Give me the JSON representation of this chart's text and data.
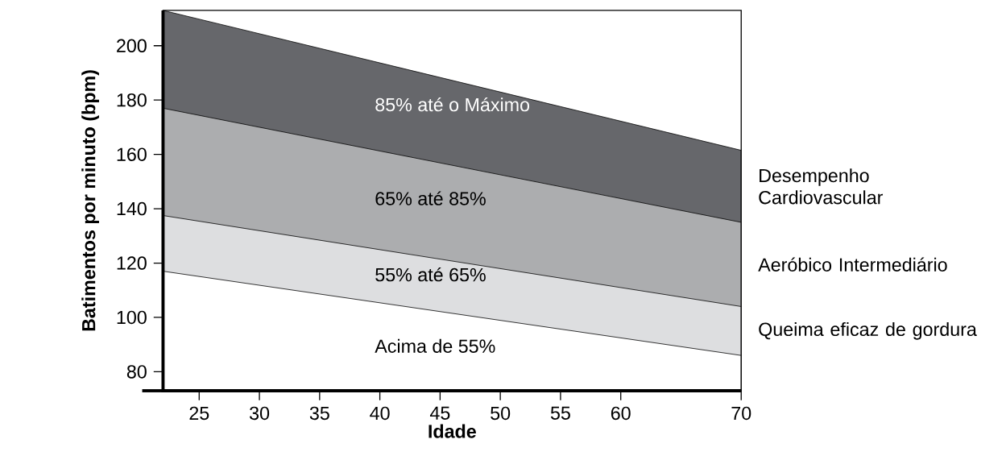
{
  "chart_data": {
    "type": "area",
    "xlabel": "Idade",
    "ylabel": "Batimentos por minuto (bpm)",
    "x": [
      22,
      70
    ],
    "series": [
      {
        "color": "#66676b",
        "values": [
          213,
          161.5
        ]
      },
      {
        "color": "#acadaf",
        "values": [
          177,
          135
        ]
      },
      {
        "color": "#dddee0",
        "values": [
          137.5,
          104
        ]
      },
      {
        "color": "#ffffff",
        "values": [
          117,
          86
        ]
      }
    ],
    "xlim": [
      22,
      70
    ],
    "ylim": [
      73,
      213
    ],
    "xticks": [
      25,
      30,
      35,
      40,
      45,
      50,
      55,
      60,
      70
    ],
    "yticks": [
      80,
      100,
      120,
      140,
      160,
      180,
      200
    ],
    "annotations": [
      "85% até o Máximo",
      "65% até 85%",
      "55% até 65%",
      "Acima de 55%",
      "Desempenho Cardiovascular",
      "Aeróbico Intermediário",
      "Queima eficaz de gordura"
    ]
  }
}
